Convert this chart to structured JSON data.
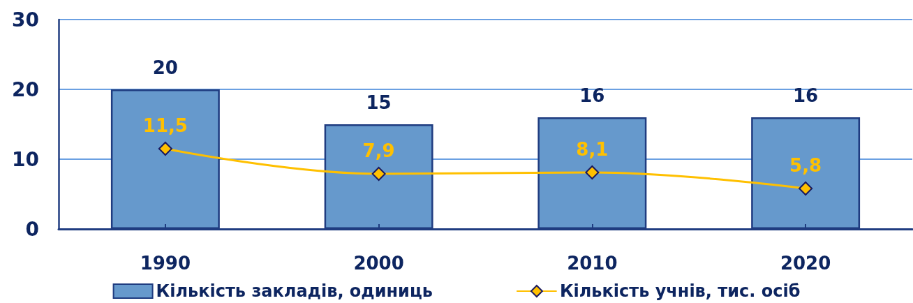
{
  "chart_data": {
    "type": "bar",
    "categories": [
      "1990",
      "2000",
      "2010",
      "2020"
    ],
    "series": [
      {
        "name": "Кількість закладів, одиниць",
        "color": "#6699cc",
        "values": [
          20,
          15,
          16,
          16
        ],
        "value_labels": [
          "20",
          "15",
          "16",
          "16"
        ]
      },
      {
        "name": "Кількість учнів, тис. осіб",
        "type": "line",
        "color": "#ffc000",
        "values": [
          11.5,
          7.9,
          8.1,
          5.8
        ],
        "value_labels": [
          "11,5",
          "7,9",
          "8,1",
          "5,8"
        ],
        "marker": "diamond"
      }
    ],
    "ylim": [
      0,
      30
    ],
    "yticks": [
      0,
      10,
      20,
      30
    ],
    "grid": "y",
    "legend": "bottom"
  }
}
